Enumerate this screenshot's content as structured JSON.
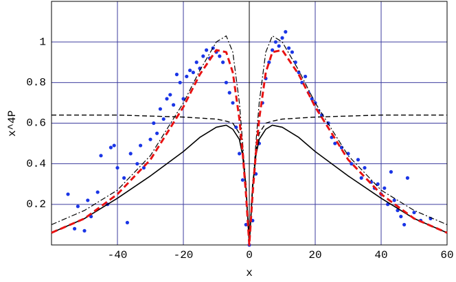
{
  "chart_data": {
    "type": "line",
    "xlabel": "x",
    "ylabel": "x^4P",
    "xlim": [
      -60,
      60
    ],
    "ylim": [
      0,
      1.2
    ],
    "xticks": [
      -40,
      -20,
      0,
      20,
      40,
      60
    ],
    "yticks": [
      0.2,
      0.4,
      0.6,
      0.8,
      1
    ],
    "grid": true,
    "grid_color": "#3b3b9e",
    "series": [
      {
        "mode": "markers",
        "color": "#1a35e6",
        "x": [
          -55,
          -53,
          -52,
          -50,
          -49,
          -48,
          -46,
          -45,
          -43,
          -42,
          -41,
          -40,
          -38,
          -37,
          -36,
          -34,
          -33,
          -32,
          -30,
          -29,
          -28,
          -27,
          -26,
          -25,
          -24,
          -23,
          -22,
          -21,
          -20,
          -19,
          -18,
          -17,
          -16,
          -15,
          -14,
          -13,
          -12,
          -11,
          -10,
          -9,
          -8,
          -7,
          -6,
          -5,
          -4,
          -3,
          -2,
          -1,
          0,
          1,
          2,
          3,
          4,
          5,
          6,
          7,
          8,
          9,
          10,
          11,
          12,
          13,
          14,
          15,
          16,
          17,
          18,
          19,
          20,
          21,
          22,
          24,
          25,
          26,
          28,
          30,
          31,
          33,
          34,
          35,
          37,
          38,
          39,
          40,
          41,
          42,
          43,
          44,
          45,
          46,
          47,
          48,
          50,
          52,
          55
        ],
        "values": [
          0.25,
          0.08,
          0.19,
          0.07,
          0.22,
          0.14,
          0.26,
          0.44,
          0.2,
          0.48,
          0.49,
          0.38,
          0.33,
          0.11,
          0.45,
          0.4,
          0.49,
          0.38,
          0.52,
          0.6,
          0.55,
          0.67,
          0.62,
          0.72,
          0.74,
          0.69,
          0.84,
          0.8,
          0.72,
          0.83,
          0.86,
          0.85,
          0.9,
          0.87,
          0.93,
          0.96,
          0.92,
          0.97,
          0.95,
          0.93,
          0.9,
          0.8,
          0.75,
          0.7,
          0.58,
          0.45,
          0.32,
          0.1,
          0,
          0.12,
          0.35,
          0.5,
          0.7,
          0.82,
          0.9,
          0.96,
          1,
          0.98,
          1.02,
          1.05,
          0.97,
          0.95,
          0.9,
          0.85,
          0.8,
          0.83,
          0.75,
          0.72,
          0.7,
          0.66,
          0.64,
          0.6,
          0.53,
          0.5,
          0.48,
          0.45,
          0.4,
          0.42,
          0.33,
          0.38,
          0.31,
          0.28,
          0.3,
          0.25,
          0.28,
          0.2,
          0.36,
          0.22,
          0.17,
          0.14,
          0.1,
          0.33,
          0.16,
          0.12,
          0.13
        ]
      },
      {
        "mode": "line",
        "color": "#000000",
        "dash": "none",
        "width": 1.6,
        "x": [
          -60,
          -50,
          -40,
          -30,
          -20,
          -15,
          -10,
          -7,
          -5,
          -3,
          -2,
          -1,
          0,
          1,
          2,
          3,
          5,
          7,
          10,
          15,
          20,
          30,
          40,
          50,
          60
        ],
        "values": [
          0.06,
          0.13,
          0.23,
          0.34,
          0.46,
          0.53,
          0.58,
          0.59,
          0.57,
          0.52,
          0.44,
          0.28,
          0,
          0.28,
          0.44,
          0.52,
          0.57,
          0.59,
          0.58,
          0.53,
          0.46,
          0.34,
          0.23,
          0.13,
          0.06
        ]
      },
      {
        "mode": "line",
        "color": "#000000",
        "dash": "7 4",
        "width": 1.4,
        "x": [
          -60,
          -50,
          -40,
          -30,
          -20,
          -15,
          -10,
          -7,
          -5,
          -3,
          -2,
          -1,
          0,
          1,
          2,
          3,
          5,
          7,
          10,
          15,
          20,
          30,
          40,
          50,
          60
        ],
        "values": [
          0.64,
          0.64,
          0.64,
          0.635,
          0.63,
          0.625,
          0.62,
          0.61,
          0.6,
          0.55,
          0.46,
          0.3,
          0,
          0.3,
          0.46,
          0.55,
          0.6,
          0.61,
          0.62,
          0.625,
          0.63,
          0.635,
          0.64,
          0.64,
          0.64
        ]
      },
      {
        "mode": "line",
        "color": "#000000",
        "dash": "8 3 2 3",
        "width": 1.2,
        "x": [
          -60,
          -50,
          -40,
          -30,
          -20,
          -15,
          -10,
          -7,
          -5,
          -3,
          -2,
          -1,
          0,
          1,
          2,
          3,
          5,
          7,
          10,
          15,
          20,
          30,
          40,
          50,
          60
        ],
        "values": [
          0.1,
          0.17,
          0.27,
          0.44,
          0.7,
          0.86,
          1,
          1.03,
          0.95,
          0.7,
          0.5,
          0.28,
          0,
          0.28,
          0.5,
          0.7,
          0.95,
          1.03,
          1,
          0.86,
          0.7,
          0.44,
          0.27,
          0.17,
          0.1
        ]
      },
      {
        "mode": "line",
        "color": "#e81212",
        "dash": "9 5",
        "width": 3,
        "x": [
          -60,
          -50,
          -40,
          -30,
          -20,
          -15,
          -10,
          -7,
          -5,
          -3,
          -2,
          -1,
          0,
          1,
          2,
          3,
          5,
          7,
          10,
          15,
          20,
          30,
          40,
          50,
          60
        ],
        "values": [
          0.06,
          0.13,
          0.25,
          0.42,
          0.68,
          0.84,
          0.96,
          0.95,
          0.85,
          0.62,
          0.45,
          0.25,
          0,
          0.25,
          0.45,
          0.62,
          0.85,
          0.95,
          0.96,
          0.84,
          0.68,
          0.42,
          0.25,
          0.13,
          0.06
        ]
      }
    ]
  }
}
